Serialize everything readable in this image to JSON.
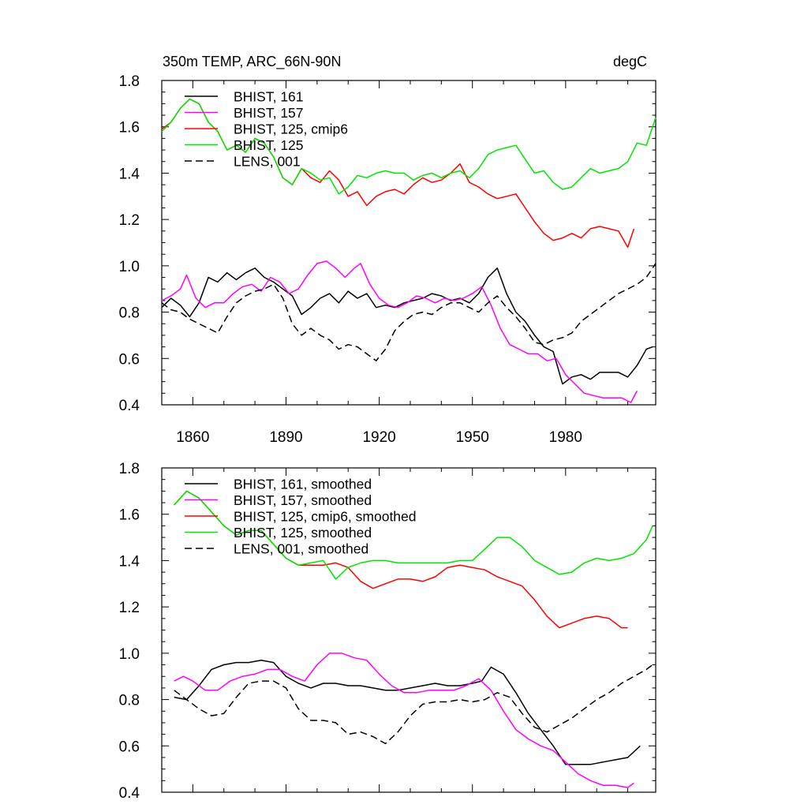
{
  "chart_data": [
    {
      "type": "line",
      "title": "350m TEMP, ARC_66N-90N",
      "units": "degC",
      "xlim": [
        1850,
        2009
      ],
      "ylim": [
        0.4,
        1.8
      ],
      "xticks": [
        1860,
        1890,
        1920,
        1950,
        1980
      ],
      "xtick_labels": [
        "1860",
        "1890",
        "1920",
        "1950",
        "1980"
      ],
      "yticks": [
        0.4,
        0.6,
        0.8,
        1.0,
        1.2,
        1.4,
        1.6,
        1.8
      ],
      "ytick_labels": [
        "0.4",
        "0.6",
        "0.8",
        "1.0",
        "1.2",
        "1.4",
        "1.6",
        "1.8"
      ],
      "legend_position": "top-left",
      "series": [
        {
          "name": "BHIST, 161",
          "color": "#000000",
          "dash": "solid",
          "x": [
            1850,
            1853,
            1856,
            1859,
            1862,
            1865,
            1868,
            1871,
            1874,
            1877,
            1880,
            1883,
            1886,
            1889,
            1892,
            1895,
            1898,
            1901,
            1904,
            1907,
            1910,
            1913,
            1916,
            1919,
            1922,
            1925,
            1928,
            1931,
            1934,
            1937,
            1940,
            1943,
            1946,
            1949,
            1952,
            1955,
            1958,
            1961,
            1964,
            1967,
            1970,
            1973,
            1976,
            1979,
            1982,
            1985,
            1988,
            1991,
            1994,
            1997,
            2000,
            2003,
            2006,
            2008
          ],
          "y": [
            0.82,
            0.86,
            0.83,
            0.78,
            0.84,
            0.95,
            0.93,
            0.97,
            0.94,
            0.97,
            0.99,
            0.95,
            0.93,
            0.9,
            0.87,
            0.79,
            0.82,
            0.86,
            0.88,
            0.84,
            0.89,
            0.86,
            0.88,
            0.82,
            0.83,
            0.82,
            0.84,
            0.85,
            0.86,
            0.88,
            0.87,
            0.85,
            0.86,
            0.84,
            0.88,
            0.95,
            0.99,
            0.88,
            0.8,
            0.76,
            0.7,
            0.65,
            0.63,
            0.49,
            0.52,
            0.53,
            0.51,
            0.54,
            0.54,
            0.54,
            0.52,
            0.57,
            0.64,
            0.65
          ]
        },
        {
          "name": "BHIST, 157",
          "color": "#ff00ff",
          "dash": "solid",
          "x": [
            1850,
            1853,
            1856,
            1858,
            1861,
            1864,
            1867,
            1870,
            1873,
            1876,
            1879,
            1882,
            1885,
            1888,
            1891,
            1894,
            1897,
            1900,
            1903,
            1906,
            1909,
            1912,
            1914,
            1917,
            1920,
            1923,
            1926,
            1929,
            1932,
            1935,
            1938,
            1941,
            1944,
            1947,
            1950,
            1953,
            1956,
            1959,
            1962,
            1965,
            1968,
            1971,
            1974,
            1977,
            1980,
            1983,
            1986,
            1989,
            1992,
            1995,
            1998,
            2001,
            2003
          ],
          "y": [
            0.85,
            0.87,
            0.9,
            0.96,
            0.86,
            0.82,
            0.84,
            0.84,
            0.88,
            0.91,
            0.92,
            0.89,
            0.95,
            0.93,
            0.88,
            0.9,
            0.96,
            1.01,
            1.02,
            0.99,
            0.95,
            0.99,
            1.01,
            0.92,
            0.86,
            0.83,
            0.82,
            0.84,
            0.87,
            0.86,
            0.84,
            0.86,
            0.85,
            0.86,
            0.88,
            0.91,
            0.83,
            0.73,
            0.66,
            0.64,
            0.62,
            0.62,
            0.59,
            0.6,
            0.53,
            0.49,
            0.45,
            0.44,
            0.43,
            0.43,
            0.43,
            0.41,
            0.46
          ]
        },
        {
          "name": "BHIST, 125, cmip6",
          "color": "#ff0000",
          "dash": "solid",
          "x": [
            1850,
            1853,
            1856,
            1859,
            1862,
            1865,
            1868,
            1871,
            1874,
            1877,
            1880,
            1883,
            1886,
            1889,
            1892,
            1895,
            1898,
            1901,
            1904,
            1907,
            1910,
            1913,
            1916,
            1919,
            1922,
            1925,
            1928,
            1931,
            1934,
            1937,
            1940,
            1943,
            1946,
            1949,
            1952,
            1955,
            1958,
            1961,
            1964,
            1967,
            1970,
            1973,
            1976,
            1979,
            1982,
            1985,
            1988,
            1991,
            1994,
            1997,
            2000,
            2002
          ],
          "y": [
            1.59,
            1.62,
            1.68,
            1.72,
            1.7,
            1.62,
            1.58,
            1.5,
            1.52,
            1.49,
            1.55,
            1.53,
            1.47,
            1.38,
            1.35,
            1.42,
            1.38,
            1.36,
            1.41,
            1.37,
            1.3,
            1.32,
            1.26,
            1.3,
            1.32,
            1.33,
            1.31,
            1.35,
            1.38,
            1.36,
            1.37,
            1.4,
            1.44,
            1.36,
            1.34,
            1.31,
            1.29,
            1.3,
            1.31,
            1.25,
            1.19,
            1.14,
            1.11,
            1.12,
            1.14,
            1.12,
            1.16,
            1.17,
            1.16,
            1.15,
            1.08,
            1.16
          ]
        },
        {
          "name": "BHIST, 125",
          "color": "#00e600",
          "dash": "solid",
          "x": [
            1850,
            1853,
            1856,
            1859,
            1862,
            1865,
            1868,
            1871,
            1874,
            1877,
            1880,
            1883,
            1886,
            1889,
            1892,
            1895,
            1898,
            1901,
            1904,
            1907,
            1910,
            1913,
            1916,
            1919,
            1922,
            1925,
            1928,
            1931,
            1934,
            1937,
            1940,
            1943,
            1946,
            1949,
            1952,
            1955,
            1958,
            1961,
            1964,
            1967,
            1970,
            1973,
            1976,
            1979,
            1982,
            1985,
            1988,
            1991,
            1994,
            1997,
            2000,
            2003,
            2006,
            2009
          ],
          "y": [
            1.58,
            1.62,
            1.68,
            1.72,
            1.7,
            1.62,
            1.58,
            1.5,
            1.52,
            1.49,
            1.55,
            1.53,
            1.47,
            1.38,
            1.35,
            1.42,
            1.4,
            1.37,
            1.38,
            1.31,
            1.34,
            1.39,
            1.38,
            1.4,
            1.41,
            1.4,
            1.4,
            1.37,
            1.39,
            1.4,
            1.38,
            1.4,
            1.41,
            1.38,
            1.42,
            1.48,
            1.5,
            1.51,
            1.52,
            1.46,
            1.4,
            1.41,
            1.36,
            1.33,
            1.34,
            1.38,
            1.42,
            1.4,
            1.41,
            1.42,
            1.45,
            1.53,
            1.52,
            1.64
          ]
        },
        {
          "name": "LENS, 001",
          "color": "#000000",
          "dash": "dashed",
          "x": [
            1850,
            1853,
            1856,
            1859,
            1862,
            1865,
            1868,
            1871,
            1874,
            1877,
            1880,
            1883,
            1886,
            1889,
            1892,
            1895,
            1898,
            1901,
            1904,
            1907,
            1910,
            1913,
            1916,
            1919,
            1922,
            1925,
            1928,
            1931,
            1934,
            1937,
            1940,
            1943,
            1946,
            1949,
            1952,
            1955,
            1958,
            1961,
            1964,
            1967,
            1970,
            1973,
            1976,
            1979,
            1982,
            1985,
            1988,
            1991,
            1994,
            1997,
            2000,
            2003,
            2006,
            2009
          ],
          "y": [
            0.84,
            0.81,
            0.8,
            0.77,
            0.75,
            0.73,
            0.71,
            0.78,
            0.84,
            0.87,
            0.89,
            0.9,
            0.92,
            0.86,
            0.75,
            0.7,
            0.73,
            0.7,
            0.68,
            0.64,
            0.66,
            0.65,
            0.62,
            0.59,
            0.64,
            0.72,
            0.76,
            0.79,
            0.8,
            0.79,
            0.82,
            0.84,
            0.84,
            0.82,
            0.8,
            0.84,
            0.87,
            0.82,
            0.78,
            0.73,
            0.67,
            0.66,
            0.68,
            0.69,
            0.71,
            0.76,
            0.79,
            0.82,
            0.85,
            0.88,
            0.9,
            0.92,
            0.95,
            1.01
          ]
        }
      ]
    },
    {
      "type": "line",
      "title": "",
      "units": "",
      "xlim": [
        1850,
        2009
      ],
      "ylim": [
        0.4,
        1.8
      ],
      "xticks": [
        1860,
        1890,
        1920,
        1950,
        1980
      ],
      "xtick_labels": [],
      "yticks": [
        0.4,
        0.6,
        0.8,
        1.0,
        1.2,
        1.4,
        1.6,
        1.8
      ],
      "ytick_labels": [
        "0.4",
        "0.6",
        "0.8",
        "1.0",
        "1.2",
        "1.4",
        "1.6",
        "1.8"
      ],
      "legend_position": "top-left",
      "series": [
        {
          "name": "BHIST, 161, smoothed",
          "color": "#000000",
          "dash": "solid",
          "x": [
            1854,
            1858,
            1862,
            1866,
            1870,
            1874,
            1878,
            1882,
            1886,
            1890,
            1894,
            1898,
            1902,
            1906,
            1910,
            1914,
            1918,
            1922,
            1926,
            1930,
            1934,
            1938,
            1942,
            1946,
            1950,
            1953,
            1956,
            1960,
            1964,
            1968,
            1972,
            1976,
            1980,
            1984,
            1988,
            1992,
            1996,
            2000,
            2004
          ],
          "y": [
            0.81,
            0.8,
            0.86,
            0.93,
            0.95,
            0.96,
            0.96,
            0.97,
            0.96,
            0.9,
            0.87,
            0.85,
            0.87,
            0.87,
            0.86,
            0.86,
            0.85,
            0.84,
            0.84,
            0.85,
            0.86,
            0.87,
            0.86,
            0.86,
            0.87,
            0.88,
            0.94,
            0.91,
            0.83,
            0.74,
            0.67,
            0.6,
            0.52,
            0.52,
            0.52,
            0.53,
            0.54,
            0.55,
            0.6
          ]
        },
        {
          "name": "BHIST, 157, smoothed",
          "color": "#ff00ff",
          "dash": "solid",
          "x": [
            1854,
            1857,
            1860,
            1864,
            1868,
            1872,
            1876,
            1880,
            1884,
            1888,
            1892,
            1896,
            1900,
            1904,
            1908,
            1912,
            1916,
            1920,
            1924,
            1928,
            1932,
            1936,
            1940,
            1944,
            1948,
            1952,
            1956,
            1960,
            1964,
            1968,
            1972,
            1976,
            1980,
            1984,
            1988,
            1992,
            1996,
            2000,
            2002
          ],
          "y": [
            0.88,
            0.9,
            0.88,
            0.84,
            0.84,
            0.88,
            0.9,
            0.91,
            0.93,
            0.93,
            0.9,
            0.88,
            0.95,
            1.0,
            1.0,
            0.98,
            0.97,
            0.91,
            0.86,
            0.83,
            0.83,
            0.84,
            0.84,
            0.84,
            0.86,
            0.89,
            0.84,
            0.75,
            0.67,
            0.63,
            0.6,
            0.58,
            0.53,
            0.48,
            0.45,
            0.43,
            0.43,
            0.42,
            0.44
          ]
        },
        {
          "name": "BHIST, 125, cmip6, smoothed",
          "color": "#ff0000",
          "dash": "solid",
          "x": [
            1854,
            1858,
            1862,
            1866,
            1870,
            1874,
            1878,
            1882,
            1886,
            1890,
            1894,
            1898,
            1902,
            1906,
            1910,
            1914,
            1918,
            1922,
            1926,
            1930,
            1934,
            1938,
            1942,
            1946,
            1950,
            1954,
            1958,
            1962,
            1966,
            1970,
            1974,
            1978,
            1982,
            1986,
            1990,
            1994,
            1998,
            2000
          ],
          "y": [
            1.64,
            1.7,
            1.67,
            1.61,
            1.55,
            1.51,
            1.53,
            1.53,
            1.47,
            1.41,
            1.38,
            1.38,
            1.38,
            1.39,
            1.37,
            1.31,
            1.28,
            1.3,
            1.32,
            1.32,
            1.31,
            1.33,
            1.37,
            1.38,
            1.37,
            1.36,
            1.33,
            1.31,
            1.29,
            1.23,
            1.16,
            1.11,
            1.13,
            1.15,
            1.16,
            1.15,
            1.11,
            1.11
          ]
        },
        {
          "name": "BHIST, 125, smoothed",
          "color": "#00e600",
          "dash": "solid",
          "x": [
            1854,
            1858,
            1862,
            1866,
            1870,
            1874,
            1878,
            1882,
            1886,
            1890,
            1894,
            1898,
            1902,
            1906,
            1910,
            1914,
            1918,
            1922,
            1926,
            1930,
            1934,
            1938,
            1942,
            1946,
            1950,
            1954,
            1958,
            1962,
            1966,
            1970,
            1974,
            1978,
            1982,
            1986,
            1990,
            1994,
            1998,
            2002,
            2006,
            2008
          ],
          "y": [
            1.64,
            1.7,
            1.67,
            1.61,
            1.55,
            1.51,
            1.53,
            1.53,
            1.47,
            1.41,
            1.38,
            1.39,
            1.4,
            1.32,
            1.37,
            1.39,
            1.4,
            1.4,
            1.39,
            1.39,
            1.39,
            1.39,
            1.39,
            1.4,
            1.4,
            1.45,
            1.5,
            1.5,
            1.46,
            1.4,
            1.37,
            1.34,
            1.35,
            1.39,
            1.41,
            1.4,
            1.41,
            1.43,
            1.49,
            1.55
          ]
        },
        {
          "name": "LENS, 001, smoothed",
          "color": "#000000",
          "dash": "dashed",
          "x": [
            1854,
            1858,
            1862,
            1866,
            1870,
            1874,
            1878,
            1882,
            1886,
            1890,
            1894,
            1898,
            1902,
            1906,
            1910,
            1914,
            1918,
            1922,
            1926,
            1930,
            1934,
            1938,
            1942,
            1946,
            1950,
            1954,
            1958,
            1962,
            1966,
            1970,
            1974,
            1978,
            1982,
            1986,
            1990,
            1994,
            1998,
            2002,
            2006,
            2008
          ],
          "y": [
            0.84,
            0.8,
            0.76,
            0.73,
            0.74,
            0.81,
            0.87,
            0.88,
            0.88,
            0.85,
            0.76,
            0.71,
            0.71,
            0.7,
            0.65,
            0.66,
            0.64,
            0.61,
            0.66,
            0.73,
            0.78,
            0.79,
            0.79,
            0.8,
            0.79,
            0.8,
            0.83,
            0.81,
            0.74,
            0.68,
            0.66,
            0.69,
            0.72,
            0.76,
            0.8,
            0.83,
            0.87,
            0.9,
            0.93,
            0.95
          ]
        }
      ]
    }
  ]
}
